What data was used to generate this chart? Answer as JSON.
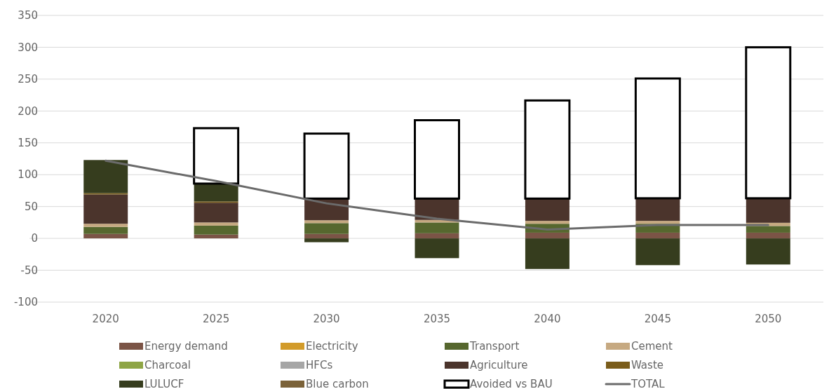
{
  "chart_data": {
    "type": "bar",
    "stacked": true,
    "categories": [
      "2020",
      "2025",
      "2030",
      "2035",
      "2040",
      "2045",
      "2050"
    ],
    "ylim": [
      -100,
      350
    ],
    "yticks": [
      -100,
      -50,
      0,
      50,
      100,
      150,
      200,
      250,
      300,
      350
    ],
    "grid": "y",
    "legend": "bottom",
    "marker": "none",
    "series": [
      {
        "name": "Energy demand",
        "color": "#7b5446",
        "values": [
          7,
          6,
          7,
          8,
          9,
          9,
          9
        ]
      },
      {
        "name": "Electricity",
        "color": "#d29b2a",
        "values": [
          0,
          0,
          0,
          0,
          0,
          0,
          0
        ]
      },
      {
        "name": "Transport",
        "color": "#56672e",
        "values": [
          11,
          14,
          17,
          17,
          14,
          14,
          10.5
        ]
      },
      {
        "name": "Cement",
        "color": "#c6a981",
        "values": [
          5,
          5,
          4.5,
          4,
          4.5,
          4.5,
          5
        ]
      },
      {
        "name": "Charcoal",
        "color": "#8ea545",
        "values": [
          0,
          0,
          0,
          0,
          0,
          0,
          0
        ]
      },
      {
        "name": "HFCs",
        "color": "#a6a6a6",
        "values": [
          0,
          0,
          0,
          0,
          0,
          0,
          0
        ]
      },
      {
        "name": "Agriculture",
        "color": "#4b342c",
        "values": [
          46,
          31,
          34,
          33.5,
          35,
          35.5,
          38.5
        ]
      },
      {
        "name": "Waste",
        "color": "#7a5c1a",
        "values": [
          2,
          2,
          0,
          0,
          0,
          0,
          0
        ]
      },
      {
        "name": "LULUCF",
        "color": "#363d1e",
        "values": [
          52,
          28,
          -6,
          -31,
          -48,
          -42,
          -41
        ]
      },
      {
        "name": "Blue carbon",
        "color": "#7b6239",
        "values": [
          0,
          0,
          0,
          0,
          0,
          0,
          0
        ]
      },
      {
        "name": "Avoided vs BAU",
        "color": "#ffffff",
        "values": [
          null,
          87,
          102,
          123,
          154,
          188,
          237
        ]
      },
      {
        "name": "TOTAL",
        "type": "line",
        "color": "#6b6b6b",
        "line_style": "solid",
        "values": [
          122,
          90,
          55,
          31,
          14,
          21,
          21
        ]
      }
    ]
  }
}
